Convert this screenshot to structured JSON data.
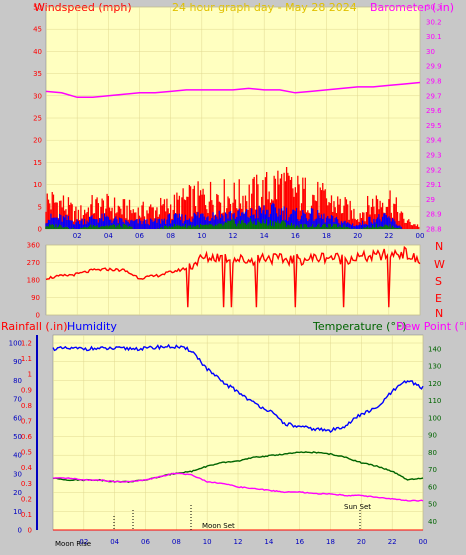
{
  "header": {
    "windspeed_label": "Windspeed (mph)",
    "date_title": "24 hour graph day - May 28 2024",
    "barometer_label": "Barometer (.in)"
  },
  "direction_labels": [
    "N",
    "W",
    "S",
    "E",
    "N"
  ],
  "lower_header": {
    "rainfall_label": "Rainfall (.in)",
    "humidity_label": "Humidity",
    "temperature_label": "Temperature (°F)",
    "dewpoint_label": "Dew Point (°F)"
  },
  "annotations": {
    "moon_rise": "Moon Rise",
    "moon_set": "Moon Set",
    "sun_set": "Sun Set"
  },
  "colors": {
    "plot_bg": "#ffffc0",
    "page_bg": "#c8c8c8",
    "gust": "#ff0000",
    "average": "#0000ff",
    "lowest": "#008000",
    "barometer": "#ff00ff",
    "direction": "#ff0000",
    "humidity": "#0000ff",
    "temperature": "#006400",
    "dewpoint": "#ff00ff",
    "axis_blue": "#0000c0"
  },
  "chart_data": [
    {
      "type": "bar",
      "name": "wind-barometer",
      "x_tick_labels": [
        "02",
        "04",
        "06",
        "08",
        "10",
        "12",
        "14",
        "16",
        "18",
        "20",
        "22",
        "00"
      ],
      "y_left_ticks": [
        "0",
        "5",
        "10",
        "15",
        "20",
        "25",
        "30",
        "35",
        "40",
        "45",
        "50"
      ],
      "y_right_ticks": [
        "28.8",
        "28.9",
        "29",
        "29.1",
        "29.2",
        "29.3",
        "29.4",
        "29.5",
        "29.6",
        "29.7",
        "29.8",
        "29.9",
        "30",
        "30.1",
        "30.2",
        "30.3"
      ],
      "ylim_left": [
        0,
        50
      ],
      "ylim_right": [
        28.8,
        30.3
      ],
      "hours": [
        0,
        1,
        2,
        3,
        4,
        5,
        6,
        7,
        8,
        9,
        10,
        11,
        12,
        13,
        14,
        15,
        16,
        17,
        18,
        19,
        20,
        21,
        22,
        23,
        24
      ],
      "barometer": [
        29.73,
        29.72,
        29.69,
        29.69,
        29.7,
        29.71,
        29.72,
        29.72,
        29.73,
        29.74,
        29.74,
        29.74,
        29.74,
        29.75,
        29.74,
        29.74,
        29.72,
        29.73,
        29.74,
        29.75,
        29.76,
        29.76,
        29.77,
        29.78,
        29.79
      ],
      "gust_max": [
        10,
        9,
        5,
        8,
        8,
        7,
        6,
        7,
        8,
        10,
        11,
        12,
        11,
        12,
        13,
        16,
        13,
        12,
        10,
        8,
        5,
        9,
        11,
        3,
        1
      ],
      "average": [
        3,
        3,
        2,
        3,
        3,
        2,
        2,
        2,
        3,
        3,
        4,
        4,
        4,
        4,
        5,
        5,
        4,
        4,
        3,
        2,
        1,
        3,
        3,
        0,
        0
      ],
      "lowest": [
        1,
        1,
        0,
        1,
        1,
        1,
        0,
        0,
        1,
        1,
        1,
        1,
        2,
        2,
        2,
        2,
        1,
        1,
        1,
        1,
        0,
        1,
        1,
        0,
        0
      ]
    },
    {
      "type": "line",
      "name": "wind-direction",
      "x_tick_labels": [
        "02",
        "04",
        "06",
        "08",
        "10",
        "12",
        "14",
        "16",
        "18",
        "20",
        "22",
        "00"
      ],
      "y_ticks": [
        "0",
        "90",
        "180",
        "270",
        "360"
      ],
      "ylim": [
        0,
        360
      ],
      "hours": [
        0,
        1,
        2,
        3,
        4,
        5,
        6,
        7,
        8,
        9,
        10,
        11,
        12,
        13,
        14,
        15,
        16,
        17,
        18,
        19,
        20,
        21,
        22,
        23,
        24
      ],
      "direction": [
        190,
        200,
        210,
        230,
        235,
        230,
        190,
        200,
        220,
        240,
        290,
        300,
        290,
        280,
        300,
        285,
        285,
        290,
        300,
        290,
        295,
        300,
        315,
        320,
        270
      ]
    },
    {
      "type": "line",
      "name": "temperature-humidity",
      "x_tick_labels": [
        "02",
        "04",
        "06",
        "08",
        "10",
        "12",
        "14",
        "16",
        "18",
        "20",
        "22",
        "00"
      ],
      "y_rain_ticks": [
        "0",
        "0.1",
        "0.2",
        "0.3",
        "0.4",
        "0.5",
        "0.6",
        "0.7",
        "0.8",
        "0.9",
        "1",
        "1.1",
        "1.2"
      ],
      "y_humidity_ticks": [
        "0",
        "10",
        "20",
        "30",
        "40",
        "50",
        "60",
        "70",
        "80",
        "90",
        "100"
      ],
      "y_temp_ticks": [
        "40",
        "50",
        "60",
        "70",
        "80",
        "90",
        "100",
        "110",
        "120",
        "130",
        "140"
      ],
      "ylim_rain": [
        0,
        1.2
      ],
      "ylim_humidity": [
        0,
        100
      ],
      "ylim_temp": [
        35,
        148
      ],
      "hours": [
        0,
        1,
        2,
        3,
        4,
        5,
        6,
        7,
        8,
        9,
        10,
        11,
        12,
        13,
        14,
        15,
        16,
        17,
        18,
        19,
        20,
        21,
        22,
        23,
        24
      ],
      "humidity": [
        97,
        97,
        97,
        97,
        97,
        97,
        97,
        98,
        98,
        96,
        86,
        79,
        74,
        68,
        64,
        57,
        55,
        54,
        53,
        56,
        62,
        65,
        74,
        80,
        76
      ],
      "temperature": [
        65,
        64,
        64,
        64,
        63,
        63,
        64,
        66,
        68,
        69,
        72,
        74,
        75,
        77,
        78,
        79,
        80,
        80,
        79,
        77,
        74,
        72,
        69,
        64,
        65
      ],
      "dewpoint": [
        65,
        65,
        64,
        64,
        63,
        63,
        64,
        66,
        68,
        67,
        63,
        62,
        60,
        59,
        58,
        57,
        57,
        56,
        56,
        55,
        55,
        54,
        53,
        52,
        52
      ],
      "rainfall": [
        0,
        0,
        0,
        0,
        0,
        0,
        0,
        0,
        0,
        0,
        0,
        0,
        0,
        0,
        0,
        0,
        0,
        0,
        0,
        0,
        0,
        0,
        0,
        0,
        0
      ]
    }
  ]
}
